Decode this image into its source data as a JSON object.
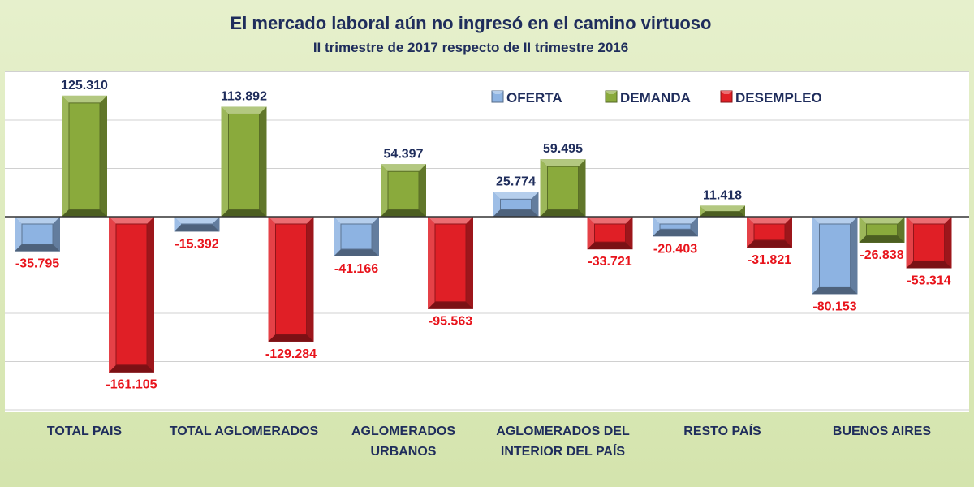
{
  "chart_data": {
    "type": "bar",
    "title": "El mercado laboral aún no ingresó en el camino virtuoso",
    "subtitle": "II trimestre de 2017 respecto de II trimestre 2016",
    "categories": [
      [
        "TOTAL PAIS"
      ],
      [
        "TOTAL AGLOMERADOS"
      ],
      [
        "AGLOMERADOS",
        "URBANOS"
      ],
      [
        "AGLOMERADOS DEL",
        "INTERIOR DEL PAÍS"
      ],
      [
        "RESTO PAÍS"
      ],
      [
        "BUENOS AIRES"
      ]
    ],
    "series": [
      {
        "name": "OFERTA",
        "color": "#8db3e2",
        "values": [
          -35795,
          -15392,
          -41166,
          25774,
          -20403,
          -80153
        ],
        "labels": [
          "-35.795",
          "-15.392",
          "-41.166",
          "25.774",
          "-20.403",
          "-80.153"
        ]
      },
      {
        "name": "DEMANDA",
        "color": "#8aaa3c",
        "values": [
          125310,
          113892,
          54397,
          59495,
          11418,
          -26838
        ],
        "labels": [
          "125.310",
          "113.892",
          "54.397",
          "59.495",
          "11.418",
          "-26.838"
        ]
      },
      {
        "name": "DESEMPLEO",
        "color": "#e01f26",
        "values": [
          -161105,
          -129284,
          -95563,
          -33721,
          -31821,
          -53314
        ],
        "labels": [
          "-161.105",
          "-129.284",
          "-95.563",
          "-33.721",
          "-31.821",
          "-53.314"
        ]
      }
    ],
    "ylim": [
      -200000,
      150000
    ],
    "grid": true,
    "legend_position": "top-right"
  }
}
